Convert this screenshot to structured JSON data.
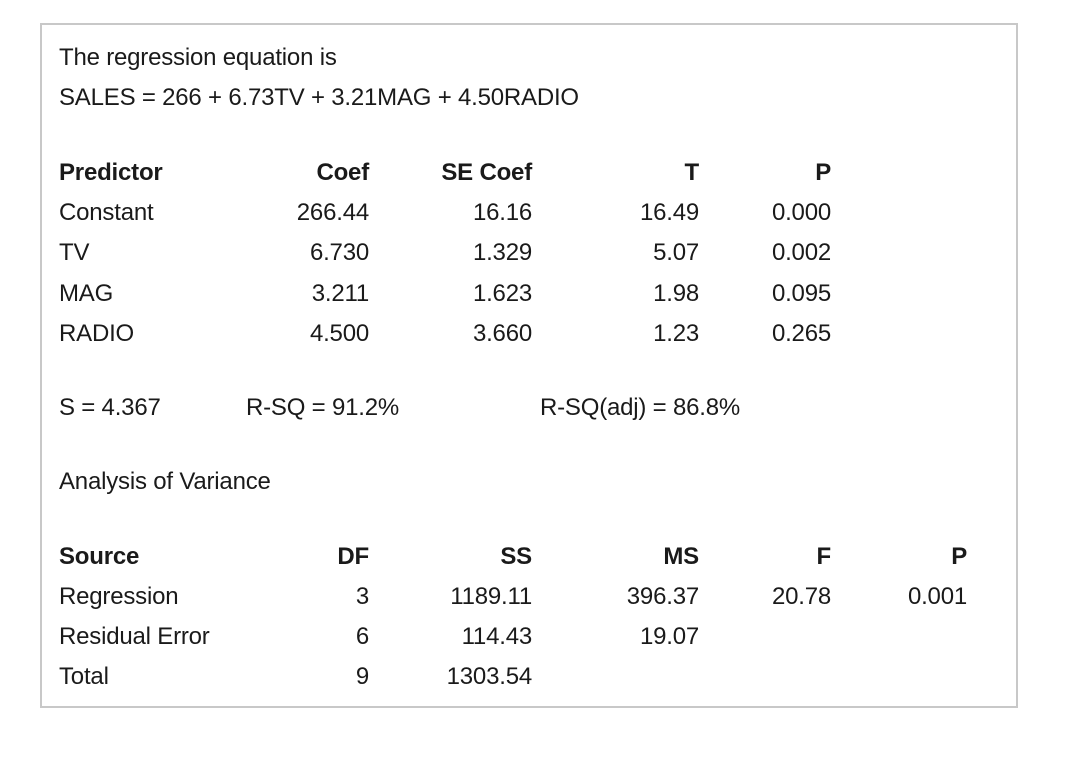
{
  "equation_heading": "The regression equation is",
  "equation": "SALES = 266 + 6.73TV + 3.21MAG + 4.50RADIO",
  "coef_table": {
    "headers": [
      "Predictor",
      "Coef",
      "SE Coef",
      "T",
      "P"
    ],
    "rows": [
      [
        "Constant",
        "266.44",
        "16.16",
        "16.49",
        "0.000"
      ],
      [
        "TV",
        "6.730",
        "1.329",
        "5.07",
        "0.002"
      ],
      [
        "MAG",
        "3.211",
        "1.623",
        "1.98",
        "0.095"
      ],
      [
        "RADIO",
        "4.500",
        "3.660",
        "1.23",
        "0.265"
      ]
    ]
  },
  "stats": {
    "s": "S = 4.367",
    "rsq": "R-SQ = 91.2%",
    "rsq_adj": "R-SQ(adj) = 86.8%"
  },
  "anova_heading": "Analysis of Variance",
  "anova_table": {
    "headers": [
      "Source",
      "DF",
      "SS",
      "MS",
      "F",
      "P"
    ],
    "rows": [
      [
        "Regression",
        "3",
        "1189.11",
        "396.37",
        "20.78",
        "0.001"
      ],
      [
        "Residual Error",
        "6",
        "114.43",
        "19.07",
        "",
        ""
      ],
      [
        "Total",
        "9",
        "1303.54",
        "",
        "",
        ""
      ]
    ]
  }
}
